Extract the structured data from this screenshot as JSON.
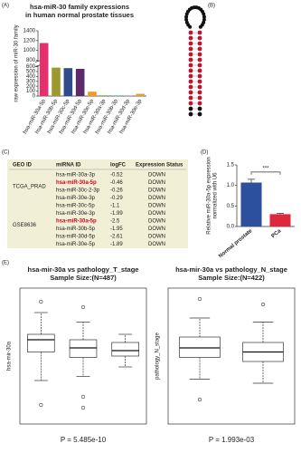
{
  "panels": {
    "a": "(A)",
    "b": "(B)",
    "c": "(C)",
    "d": "(D)",
    "e": "(E)"
  },
  "chart_data": [
    {
      "type": "bar",
      "title": [
        "hsa-miR-30 family expressions",
        "in human normal prostate tissues"
      ],
      "ylabel": [
        "raw expression of miR-30 family"
      ],
      "categories": [
        "hsa-miR-30a-5p",
        "hsa-miR-30b-5p",
        "hsa-miR-30c-5p",
        "hsa-miR-30d-5p",
        "hsa-miR-30e-5p",
        "hsa-miR-30a-3p",
        "hsa-miR-30b-3p",
        "hsa-miR-30d-3p",
        "hsa-miR-30e-3p"
      ],
      "values": [
        1150,
        580,
        570,
        555,
        90,
        15,
        10,
        5,
        45
      ],
      "colors": [
        "#e5306c",
        "#9c9a2e",
        "#2f4b8c",
        "#5c2a6a",
        "#f39a1f",
        "#8bb43a",
        "#3a9c9a",
        "#9aa0c8",
        "#e8a02a"
      ],
      "ylim": [
        0,
        1400
      ],
      "ybreak": [
        620,
        780
      ],
      "yticks": [
        0,
        100,
        200,
        300,
        400,
        500,
        600,
        800,
        1000,
        1200,
        1400
      ],
      "xlabel_rotation": -60
    },
    {
      "type": "bar",
      "ylabel": [
        "Relative miR-30a-5p expression",
        "normalized with U6"
      ],
      "categories": [
        "Normal prostate",
        "PCa"
      ],
      "values": [
        1.07,
        0.3
      ],
      "errors": [
        0.08,
        0.02
      ],
      "colors": [
        "#2d4f9e",
        "#dc2a3c"
      ],
      "ylim": [
        0,
        1.5
      ],
      "yticks": [
        {
          "value": 0,
          "label": "0.0"
        },
        {
          "value": 0.5,
          "label": "0.5"
        },
        {
          "value": 1,
          "label": "1.0"
        },
        {
          "value": 1.5,
          "label": "1.5"
        }
      ],
      "annotation": "***",
      "xlabel_rotation": -40
    },
    {
      "type": "box",
      "title": [
        "hsa-mir-30a vs pathology_T_stage",
        "Sample Size:(N=487)"
      ],
      "ylabel": [
        "hsa-mir-30a"
      ],
      "categories": [
        null,
        null,
        null
      ],
      "boxes": [
        {
          "whislo": 13.2,
          "q1": 15.3,
          "med": 16.2,
          "q3": 16.6,
          "whishi": 18.2,
          "fliers": [
            19.0,
            11.4
          ]
        },
        {
          "whislo": 13.5,
          "q1": 14.9,
          "med": 15.6,
          "q3": 16.2,
          "whishi": 17.5,
          "fliers": [
            18.6,
            12.0,
            11.2
          ]
        },
        {
          "whislo": 14.2,
          "q1": 15.0,
          "med": 15.4,
          "q3": 16.0,
          "whishi": 16.6,
          "fliers": []
        }
      ],
      "ylim": [
        10,
        20
      ],
      "annotation": "P = 5.485e-10"
    },
    {
      "type": "box",
      "title": [
        "hsa-mir-30a vs pathology_N_stage",
        "Sample Size:(N=422)"
      ],
      "ylabel": [
        "pathology_N_stage"
      ],
      "categories": [
        null,
        null
      ],
      "boxes": [
        {
          "whislo": 13.3,
          "q1": 14.9,
          "med": 15.6,
          "q3": 16.4,
          "whishi": 17.8,
          "fliers": [
            19.2,
            11.8
          ]
        },
        {
          "whislo": 13.0,
          "q1": 14.6,
          "med": 15.3,
          "q3": 16.0,
          "whishi": 17.5,
          "fliers": [
            18.8
          ]
        }
      ],
      "ylim": [
        10,
        20
      ],
      "annotation": "P = 1.993e-03"
    }
  ],
  "table": {
    "header": [
      "GEO ID",
      "miRNA ID",
      "logFC",
      "Expression Status"
    ],
    "groups": [
      {
        "geo": "TCGA_PRAD",
        "rows": [
          {
            "mirna": "hsa-miR-30a-3p",
            "logfc": -0.52,
            "status": "DOWN"
          },
          {
            "mirna": "hsa-miR-30a-5p",
            "logfc": -0.46,
            "status": "DOWN",
            "highlight": true
          },
          {
            "mirna": "hsa-miR-30c-2-3p",
            "logfc": -0.26,
            "status": "DOWN"
          },
          {
            "mirna": "hsa-miR-30e-3p",
            "logfc": -0.29,
            "status": "DOWN"
          }
        ]
      },
      {
        "geo": "GSE8636",
        "rows": [
          {
            "mirna": "hsa-miR-30c-5p",
            "logfc": -1.1,
            "status": "DOWN"
          },
          {
            "mirna": "hsa-miR-30e-3p",
            "logfc": -1.99,
            "status": "DOWN"
          },
          {
            "mirna": "hsa-miR-30a-5p",
            "logfc": -2.5,
            "status": "DOWN",
            "highlight": true
          },
          {
            "mirna": "hsa-miR-30b-5p",
            "logfc": -1.95,
            "status": "DOWN"
          },
          {
            "mirna": "hsa-miR-30d-5p",
            "logfc": -2.61,
            "status": "DOWN"
          },
          {
            "mirna": "hsa-miR-30e-5p",
            "logfc": -1.89,
            "status": "DOWN"
          }
        ]
      }
    ]
  }
}
